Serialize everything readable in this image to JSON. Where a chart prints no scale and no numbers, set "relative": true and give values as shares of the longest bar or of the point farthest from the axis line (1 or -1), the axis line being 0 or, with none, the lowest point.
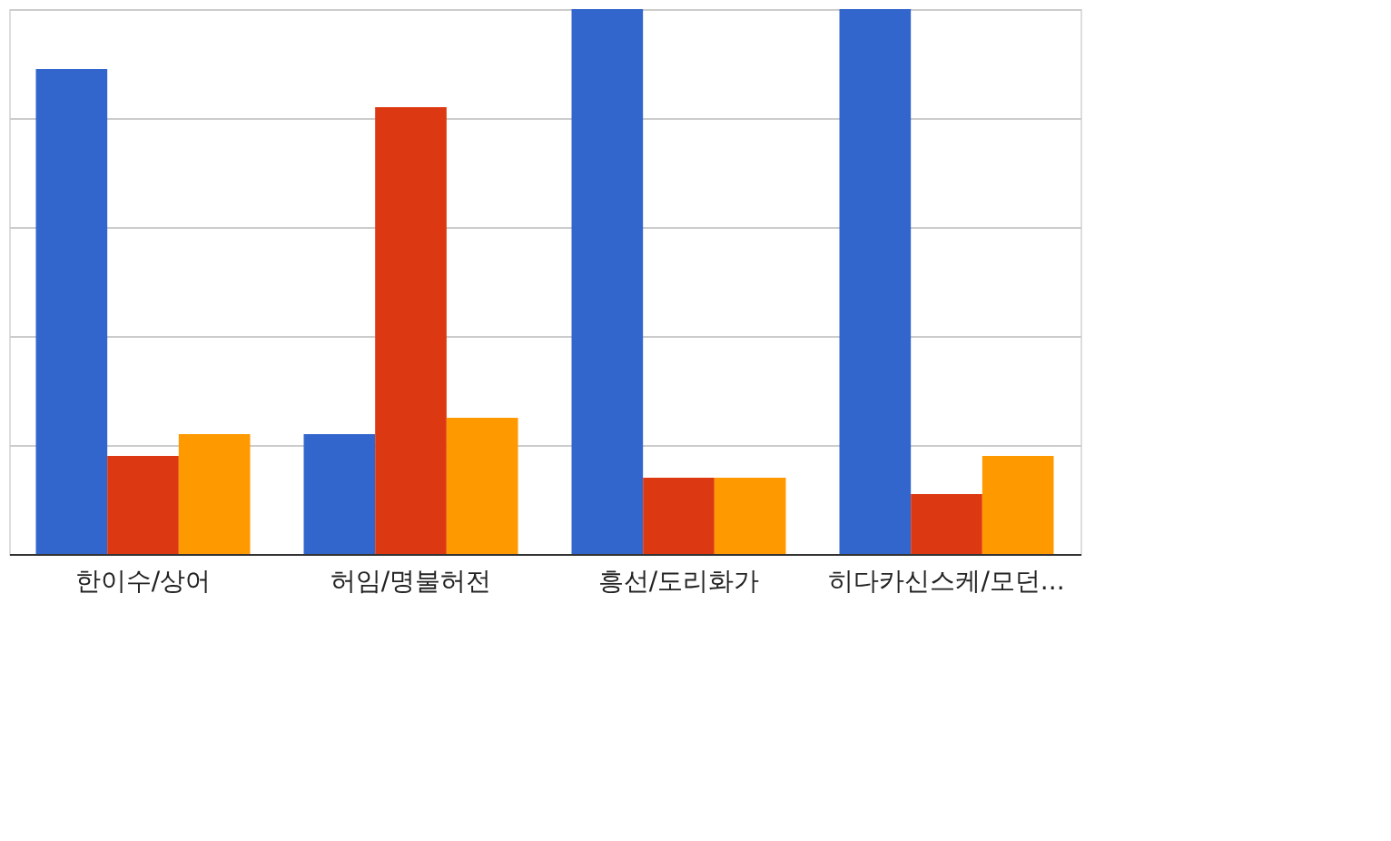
{
  "chart_data": {
    "type": "bar",
    "relative": true,
    "grid": "y",
    "legend": false,
    "categories": [
      "한이수/상어",
      "허임/명불허전",
      "흥선/도리화가",
      "히다카신스케/모던..."
    ],
    "series": [
      {
        "color": "#3366cc",
        "values": [
          0.89,
          0.22,
          1,
          1
        ]
      },
      {
        "color": "#dc3912",
        "values": [
          0.18,
          0.82,
          0.14,
          0.11
        ]
      },
      {
        "color": "#ff9900",
        "values": [
          0.22,
          0.25,
          0.14,
          0.18
        ]
      }
    ]
  }
}
